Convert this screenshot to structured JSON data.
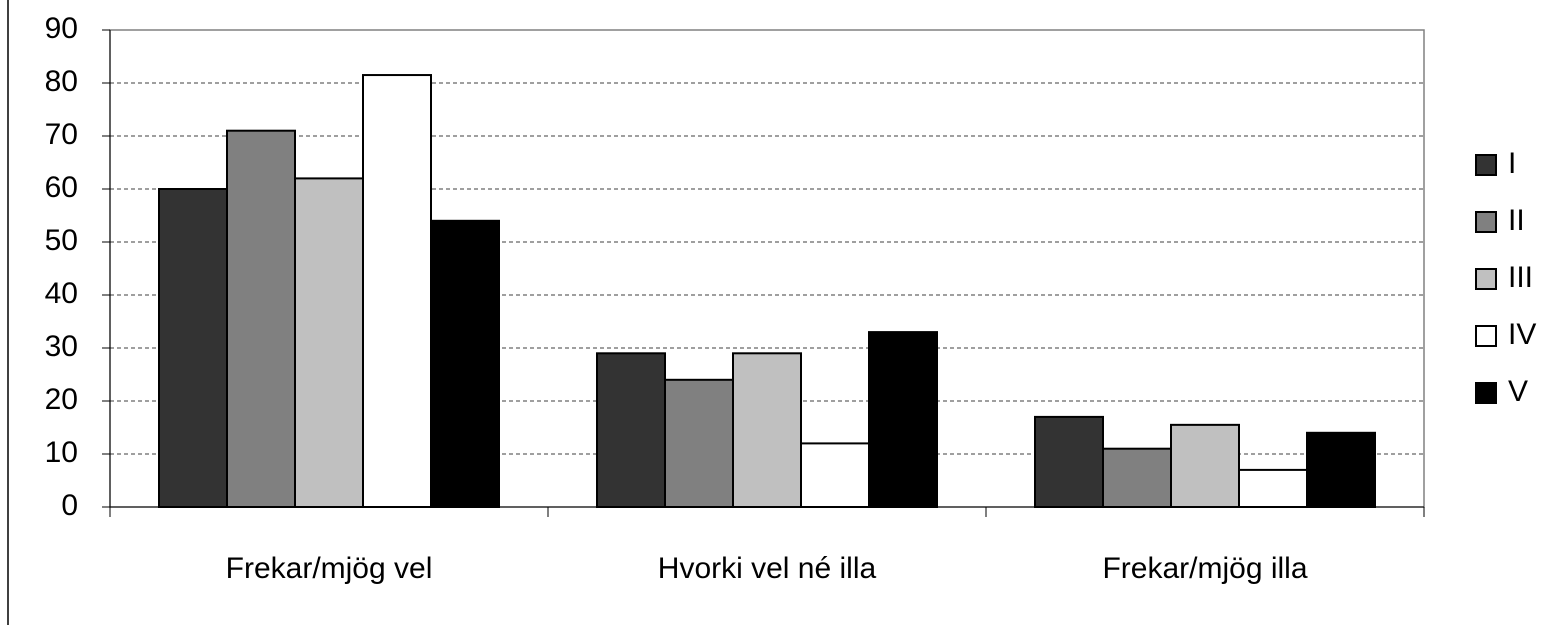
{
  "chart_data": {
    "type": "bar",
    "categories": [
      "Frekar/mjög vel",
      "Hvorki vel né illa",
      "Frekar/mjög illa"
    ],
    "series": [
      {
        "name": "I",
        "color": "#333333",
        "values": [
          60,
          29,
          17
        ]
      },
      {
        "name": "II",
        "color": "#808080",
        "values": [
          71,
          24,
          11
        ]
      },
      {
        "name": "III",
        "color": "#c0c0c0",
        "values": [
          62,
          29,
          15.5
        ]
      },
      {
        "name": "IV",
        "color": "#ffffff",
        "values": [
          81.5,
          12,
          7
        ]
      },
      {
        "name": "V",
        "color": "#000000",
        "values": [
          54,
          33,
          14
        ]
      }
    ],
    "ylim": [
      0,
      90
    ],
    "yticks": [
      0,
      10,
      20,
      30,
      40,
      50,
      60,
      70,
      80,
      90
    ],
    "grid": true,
    "legend": "right"
  }
}
